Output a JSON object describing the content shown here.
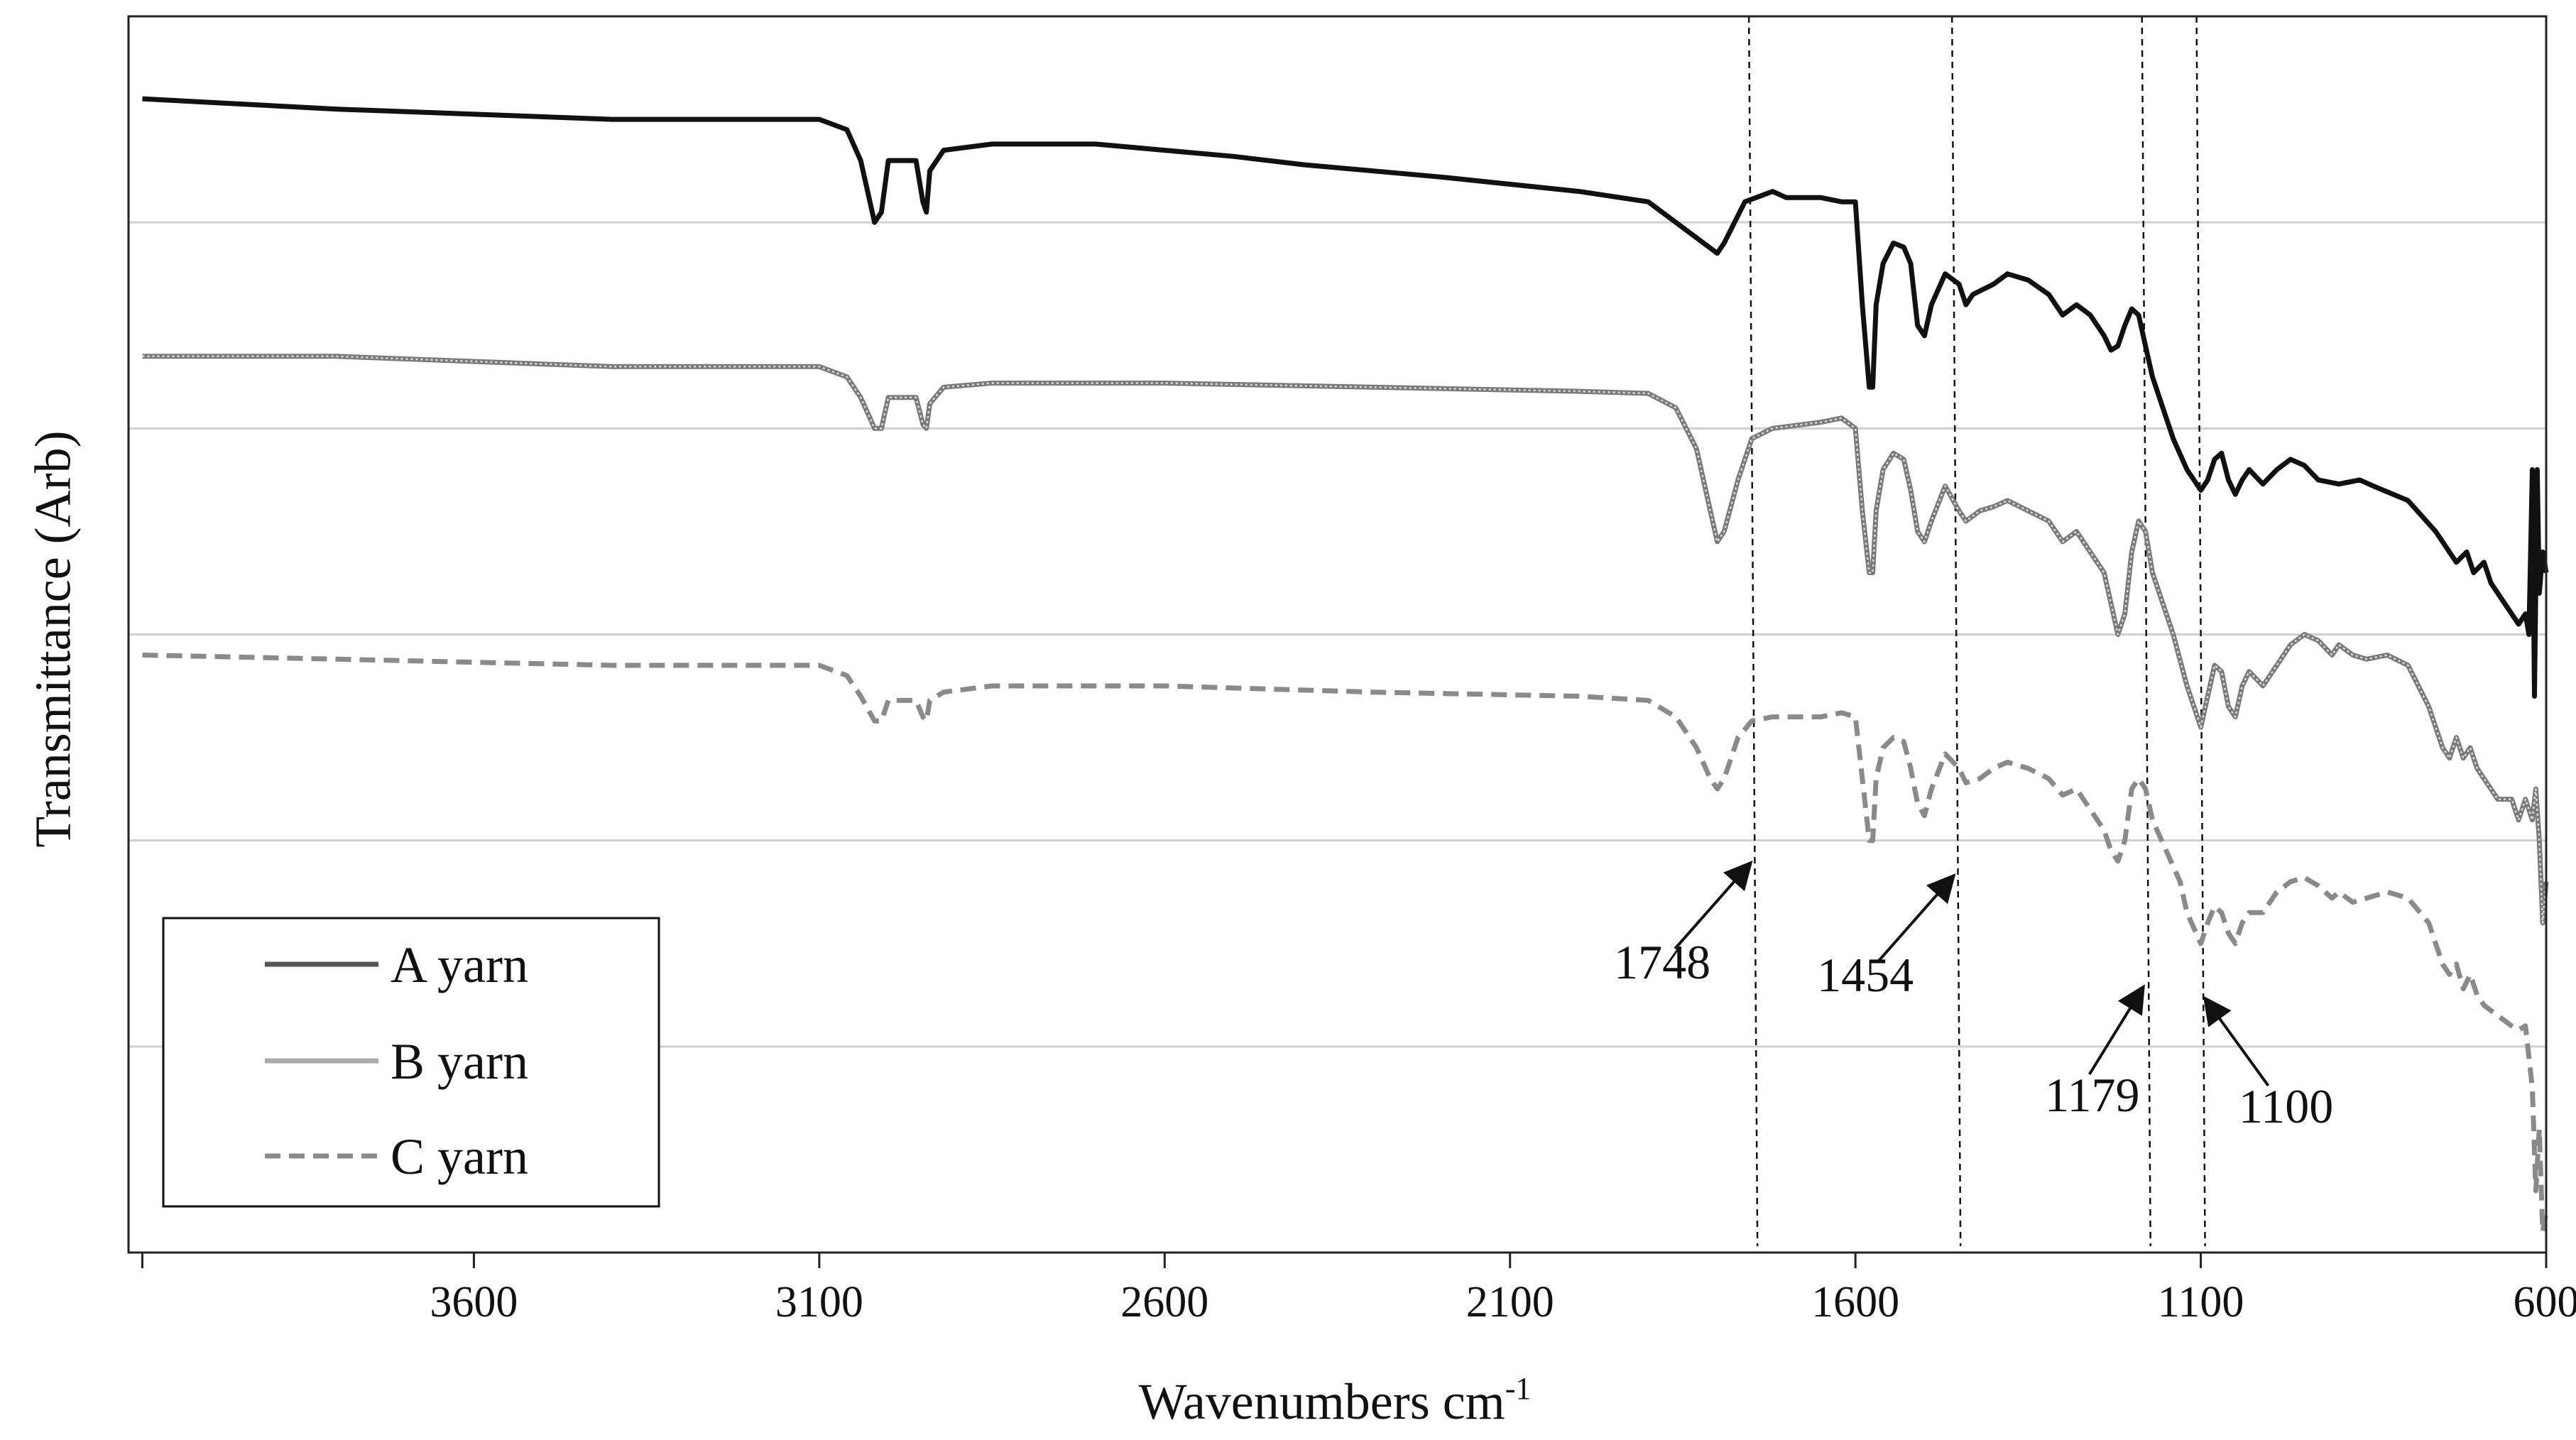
{
  "chart_data": {
    "type": "line",
    "title": "",
    "xlabel": "Wavenumbers cm",
    "xlabel_sup": "-1",
    "ylabel": "Transmittance (Arb)",
    "xlim": [
      4100,
      600
    ],
    "x_reversed": true,
    "ylim": [
      0,
      6
    ],
    "y_ticks_shown": false,
    "x_ticks": [
      3600,
      3100,
      2600,
      2100,
      1600,
      1100,
      600
    ],
    "grid": "horizontal",
    "legend_position": "bottom-left",
    "series": [
      {
        "name": "A yarn",
        "color": "#111111",
        "style": "solid",
        "points": [
          [
            4080,
            5.6
          ],
          [
            3800,
            5.55
          ],
          [
            3400,
            5.5
          ],
          [
            3100,
            5.5
          ],
          [
            3060,
            5.45
          ],
          [
            3040,
            5.3
          ],
          [
            3020,
            5.0
          ],
          [
            3010,
            5.05
          ],
          [
            3000,
            5.3
          ],
          [
            2990,
            5.3
          ],
          [
            2960,
            5.3
          ],
          [
            2950,
            5.1
          ],
          [
            2945,
            5.05
          ],
          [
            2940,
            5.25
          ],
          [
            2920,
            5.35
          ],
          [
            2850,
            5.38
          ],
          [
            2700,
            5.38
          ],
          [
            2600,
            5.35
          ],
          [
            2500,
            5.32
          ],
          [
            2400,
            5.28
          ],
          [
            2200,
            5.22
          ],
          [
            2000,
            5.15
          ],
          [
            1900,
            5.1
          ],
          [
            1860,
            5.0
          ],
          [
            1820,
            4.9
          ],
          [
            1800,
            4.85
          ],
          [
            1790,
            4.9
          ],
          [
            1760,
            5.1
          ],
          [
            1720,
            5.15
          ],
          [
            1700,
            5.12
          ],
          [
            1650,
            5.12
          ],
          [
            1620,
            5.1
          ],
          [
            1600,
            5.1
          ],
          [
            1590,
            4.6
          ],
          [
            1580,
            4.2
          ],
          [
            1575,
            4.2
          ],
          [
            1570,
            4.6
          ],
          [
            1560,
            4.8
          ],
          [
            1545,
            4.9
          ],
          [
            1530,
            4.88
          ],
          [
            1520,
            4.8
          ],
          [
            1510,
            4.5
          ],
          [
            1500,
            4.45
          ],
          [
            1490,
            4.6
          ],
          [
            1470,
            4.75
          ],
          [
            1450,
            4.7
          ],
          [
            1440,
            4.6
          ],
          [
            1430,
            4.65
          ],
          [
            1400,
            4.7
          ],
          [
            1380,
            4.75
          ],
          [
            1350,
            4.72
          ],
          [
            1320,
            4.65
          ],
          [
            1300,
            4.55
          ],
          [
            1280,
            4.6
          ],
          [
            1260,
            4.55
          ],
          [
            1240,
            4.45
          ],
          [
            1230,
            4.38
          ],
          [
            1220,
            4.4
          ],
          [
            1210,
            4.5
          ],
          [
            1200,
            4.58
          ],
          [
            1190,
            4.55
          ],
          [
            1180,
            4.4
          ],
          [
            1170,
            4.25
          ],
          [
            1140,
            3.95
          ],
          [
            1120,
            3.8
          ],
          [
            1100,
            3.7
          ],
          [
            1090,
            3.75
          ],
          [
            1080,
            3.85
          ],
          [
            1070,
            3.88
          ],
          [
            1060,
            3.75
          ],
          [
            1050,
            3.68
          ],
          [
            1040,
            3.75
          ],
          [
            1030,
            3.8
          ],
          [
            1010,
            3.73
          ],
          [
            990,
            3.8
          ],
          [
            970,
            3.85
          ],
          [
            950,
            3.82
          ],
          [
            930,
            3.75
          ],
          [
            900,
            3.73
          ],
          [
            870,
            3.75
          ],
          [
            850,
            3.72
          ],
          [
            800,
            3.65
          ],
          [
            760,
            3.5
          ],
          [
            730,
            3.35
          ],
          [
            715,
            3.4
          ],
          [
            705,
            3.3
          ],
          [
            690,
            3.35
          ],
          [
            680,
            3.25
          ],
          [
            660,
            3.15
          ],
          [
            640,
            3.05
          ],
          [
            630,
            3.1
          ],
          [
            625,
            3.0
          ],
          [
            620,
            3.8
          ],
          [
            617,
            2.7
          ],
          [
            613,
            3.8
          ],
          [
            610,
            3.2
          ],
          [
            605,
            3.4
          ],
          [
            600,
            3.3
          ]
        ]
      },
      {
        "name": "B yarn",
        "color": "#8a8a8a",
        "style": "solid",
        "points": [
          [
            4080,
            4.35
          ],
          [
            3800,
            4.35
          ],
          [
            3400,
            4.3
          ],
          [
            3100,
            4.3
          ],
          [
            3060,
            4.25
          ],
          [
            3040,
            4.15
          ],
          [
            3020,
            4.0
          ],
          [
            3010,
            4.0
          ],
          [
            3000,
            4.15
          ],
          [
            2990,
            4.15
          ],
          [
            2960,
            4.15
          ],
          [
            2950,
            4.02
          ],
          [
            2945,
            4.0
          ],
          [
            2940,
            4.12
          ],
          [
            2920,
            4.2
          ],
          [
            2850,
            4.22
          ],
          [
            2600,
            4.22
          ],
          [
            2300,
            4.2
          ],
          [
            2000,
            4.18
          ],
          [
            1900,
            4.17
          ],
          [
            1860,
            4.1
          ],
          [
            1830,
            3.9
          ],
          [
            1810,
            3.6
          ],
          [
            1800,
            3.45
          ],
          [
            1790,
            3.5
          ],
          [
            1770,
            3.75
          ],
          [
            1750,
            3.95
          ],
          [
            1720,
            4.0
          ],
          [
            1650,
            4.03
          ],
          [
            1620,
            4.05
          ],
          [
            1600,
            4.0
          ],
          [
            1590,
            3.6
          ],
          [
            1580,
            3.3
          ],
          [
            1575,
            3.3
          ],
          [
            1570,
            3.6
          ],
          [
            1560,
            3.8
          ],
          [
            1545,
            3.88
          ],
          [
            1530,
            3.85
          ],
          [
            1520,
            3.7
          ],
          [
            1510,
            3.5
          ],
          [
            1500,
            3.45
          ],
          [
            1490,
            3.55
          ],
          [
            1470,
            3.72
          ],
          [
            1450,
            3.6
          ],
          [
            1440,
            3.55
          ],
          [
            1420,
            3.6
          ],
          [
            1400,
            3.62
          ],
          [
            1380,
            3.65
          ],
          [
            1350,
            3.6
          ],
          [
            1320,
            3.55
          ],
          [
            1300,
            3.45
          ],
          [
            1280,
            3.5
          ],
          [
            1260,
            3.4
          ],
          [
            1240,
            3.3
          ],
          [
            1230,
            3.15
          ],
          [
            1220,
            3.0
          ],
          [
            1210,
            3.1
          ],
          [
            1200,
            3.4
          ],
          [
            1190,
            3.55
          ],
          [
            1180,
            3.5
          ],
          [
            1170,
            3.3
          ],
          [
            1140,
            3.0
          ],
          [
            1120,
            2.75
          ],
          [
            1100,
            2.55
          ],
          [
            1090,
            2.7
          ],
          [
            1080,
            2.85
          ],
          [
            1070,
            2.82
          ],
          [
            1060,
            2.65
          ],
          [
            1050,
            2.6
          ],
          [
            1040,
            2.75
          ],
          [
            1030,
            2.82
          ],
          [
            1010,
            2.75
          ],
          [
            990,
            2.85
          ],
          [
            970,
            2.95
          ],
          [
            950,
            3.0
          ],
          [
            930,
            2.97
          ],
          [
            910,
            2.9
          ],
          [
            900,
            2.95
          ],
          [
            880,
            2.9
          ],
          [
            860,
            2.88
          ],
          [
            830,
            2.9
          ],
          [
            800,
            2.85
          ],
          [
            770,
            2.65
          ],
          [
            750,
            2.45
          ],
          [
            740,
            2.4
          ],
          [
            730,
            2.5
          ],
          [
            720,
            2.4
          ],
          [
            710,
            2.45
          ],
          [
            700,
            2.35
          ],
          [
            690,
            2.3
          ],
          [
            670,
            2.2
          ],
          [
            650,
            2.2
          ],
          [
            640,
            2.1
          ],
          [
            630,
            2.2
          ],
          [
            620,
            2.1
          ],
          [
            615,
            2.25
          ],
          [
            610,
            2.0
          ],
          [
            605,
            1.6
          ],
          [
            600,
            1.8
          ]
        ]
      },
      {
        "name": "C yarn",
        "color": "#8a8a8a",
        "style": "dashed",
        "points": [
          [
            4080,
            2.9
          ],
          [
            3800,
            2.88
          ],
          [
            3400,
            2.85
          ],
          [
            3100,
            2.85
          ],
          [
            3060,
            2.8
          ],
          [
            3040,
            2.7
          ],
          [
            3020,
            2.58
          ],
          [
            3010,
            2.58
          ],
          [
            3000,
            2.68
          ],
          [
            2990,
            2.68
          ],
          [
            2960,
            2.68
          ],
          [
            2950,
            2.6
          ],
          [
            2945,
            2.58
          ],
          [
            2940,
            2.68
          ],
          [
            2920,
            2.72
          ],
          [
            2850,
            2.75
          ],
          [
            2600,
            2.75
          ],
          [
            2300,
            2.72
          ],
          [
            2000,
            2.7
          ],
          [
            1900,
            2.68
          ],
          [
            1860,
            2.6
          ],
          [
            1830,
            2.45
          ],
          [
            1810,
            2.3
          ],
          [
            1800,
            2.25
          ],
          [
            1790,
            2.3
          ],
          [
            1770,
            2.5
          ],
          [
            1750,
            2.58
          ],
          [
            1720,
            2.6
          ],
          [
            1650,
            2.6
          ],
          [
            1620,
            2.62
          ],
          [
            1600,
            2.6
          ],
          [
            1590,
            2.3
          ],
          [
            1580,
            2.0
          ],
          [
            1575,
            2.0
          ],
          [
            1570,
            2.3
          ],
          [
            1560,
            2.45
          ],
          [
            1545,
            2.5
          ],
          [
            1530,
            2.48
          ],
          [
            1520,
            2.35
          ],
          [
            1510,
            2.18
          ],
          [
            1500,
            2.12
          ],
          [
            1490,
            2.25
          ],
          [
            1470,
            2.42
          ],
          [
            1450,
            2.35
          ],
          [
            1440,
            2.28
          ],
          [
            1420,
            2.3
          ],
          [
            1400,
            2.35
          ],
          [
            1380,
            2.38
          ],
          [
            1350,
            2.35
          ],
          [
            1320,
            2.3
          ],
          [
            1300,
            2.22
          ],
          [
            1280,
            2.25
          ],
          [
            1260,
            2.15
          ],
          [
            1240,
            2.05
          ],
          [
            1230,
            1.95
          ],
          [
            1220,
            1.9
          ],
          [
            1210,
            2.0
          ],
          [
            1200,
            2.25
          ],
          [
            1190,
            2.3
          ],
          [
            1180,
            2.25
          ],
          [
            1170,
            2.1
          ],
          [
            1150,
            1.95
          ],
          [
            1130,
            1.8
          ],
          [
            1120,
            1.65
          ],
          [
            1100,
            1.5
          ],
          [
            1090,
            1.6
          ],
          [
            1080,
            1.68
          ],
          [
            1070,
            1.65
          ],
          [
            1060,
            1.55
          ],
          [
            1050,
            1.5
          ],
          [
            1040,
            1.6
          ],
          [
            1030,
            1.65
          ],
          [
            1010,
            1.65
          ],
          [
            990,
            1.75
          ],
          [
            970,
            1.8
          ],
          [
            950,
            1.82
          ],
          [
            930,
            1.78
          ],
          [
            910,
            1.72
          ],
          [
            900,
            1.75
          ],
          [
            880,
            1.7
          ],
          [
            860,
            1.72
          ],
          [
            830,
            1.75
          ],
          [
            800,
            1.72
          ],
          [
            770,
            1.6
          ],
          [
            750,
            1.4
          ],
          [
            740,
            1.35
          ],
          [
            730,
            1.4
          ],
          [
            720,
            1.28
          ],
          [
            710,
            1.35
          ],
          [
            700,
            1.25
          ],
          [
            690,
            1.2
          ],
          [
            670,
            1.15
          ],
          [
            650,
            1.1
          ],
          [
            640,
            1.08
          ],
          [
            630,
            1.1
          ],
          [
            620,
            0.8
          ],
          [
            615,
            0.3
          ],
          [
            610,
            0.6
          ],
          [
            605,
            0.1
          ],
          [
            600,
            0.2
          ]
        ]
      }
    ],
    "reference_lines": [
      {
        "label": "1748",
        "x": 1748
      },
      {
        "label": "1454",
        "x": 1454
      },
      {
        "label": "1179",
        "x": 1179
      },
      {
        "label": "1100",
        "x": 1100
      }
    ]
  }
}
